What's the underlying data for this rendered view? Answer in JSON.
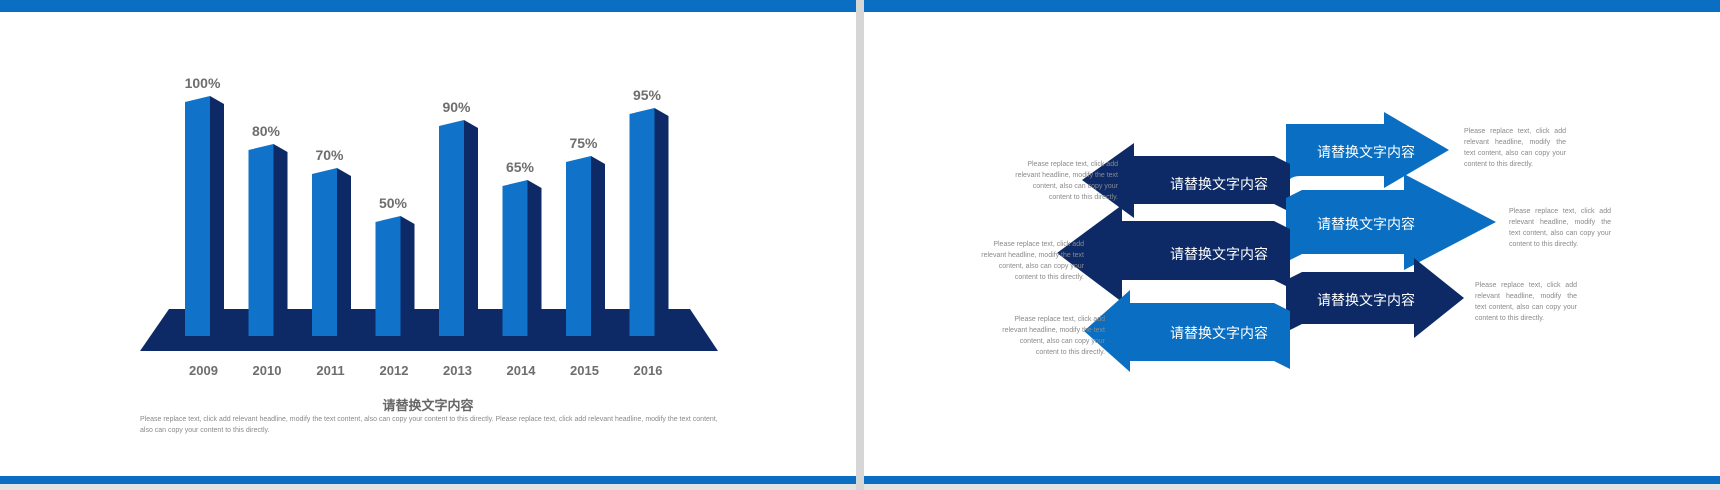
{
  "colors": {
    "accent": "#0a6fc2",
    "bar_front": "#1073c9",
    "bar_side": "#0d2a66",
    "base": "#0d2a66",
    "arrow_light": "#0a6fc2",
    "arrow_dark": "#0d2a66"
  },
  "chart_data": {
    "type": "bar",
    "categories": [
      "2009",
      "2010",
      "2011",
      "2012",
      "2013",
      "2014",
      "2015",
      "2016"
    ],
    "values": [
      100,
      80,
      70,
      50,
      90,
      65,
      75,
      95
    ],
    "value_labels": [
      "100%",
      "80%",
      "70%",
      "50%",
      "90%",
      "65%",
      "75%",
      "95%"
    ],
    "title": "请替换文字内容",
    "xlabel": "",
    "ylabel": "",
    "ylim": [
      0,
      100
    ],
    "grid": false
  },
  "left_slide": {
    "caption_title": "请替换文字内容",
    "caption_body": "Please replace text, click add relevant headline, modify the text content, also can copy your content to this directly. Please replace text, click add relevant headline, modify the text content, also can copy your content to this directly."
  },
  "right_slide": {
    "arrows": [
      {
        "label": "请替换文字内容",
        "direction": "right",
        "color": "light"
      },
      {
        "label": "请替换文字内容",
        "direction": "left",
        "color": "dark"
      },
      {
        "label": "请替换文字内容",
        "direction": "right",
        "color": "light"
      },
      {
        "label": "请替换文字内容",
        "direction": "left",
        "color": "dark"
      },
      {
        "label": "请替换文字内容",
        "direction": "right",
        "color": "dark"
      },
      {
        "label": "请替换文字内容",
        "direction": "left",
        "color": "light"
      }
    ],
    "notes": [
      "Please replace text, click add relevant headline, modify the text content, also can copy your content to this directly.",
      "Please replace text, click add relevant headline, modify the text content, also can copy your content to this directly.",
      "Please replace text, click add relevant headline, modify the text content, also can copy your content to this directly.",
      "Please replace text, click add relevant headline, modify the text content, also can copy your content to this directly.",
      "Please replace text, click add relevant headline, modify the text content, also can copy your content to this directly.",
      "Please replace text, click add relevant headline, modify the text content, also can copy your content to this directly."
    ]
  }
}
